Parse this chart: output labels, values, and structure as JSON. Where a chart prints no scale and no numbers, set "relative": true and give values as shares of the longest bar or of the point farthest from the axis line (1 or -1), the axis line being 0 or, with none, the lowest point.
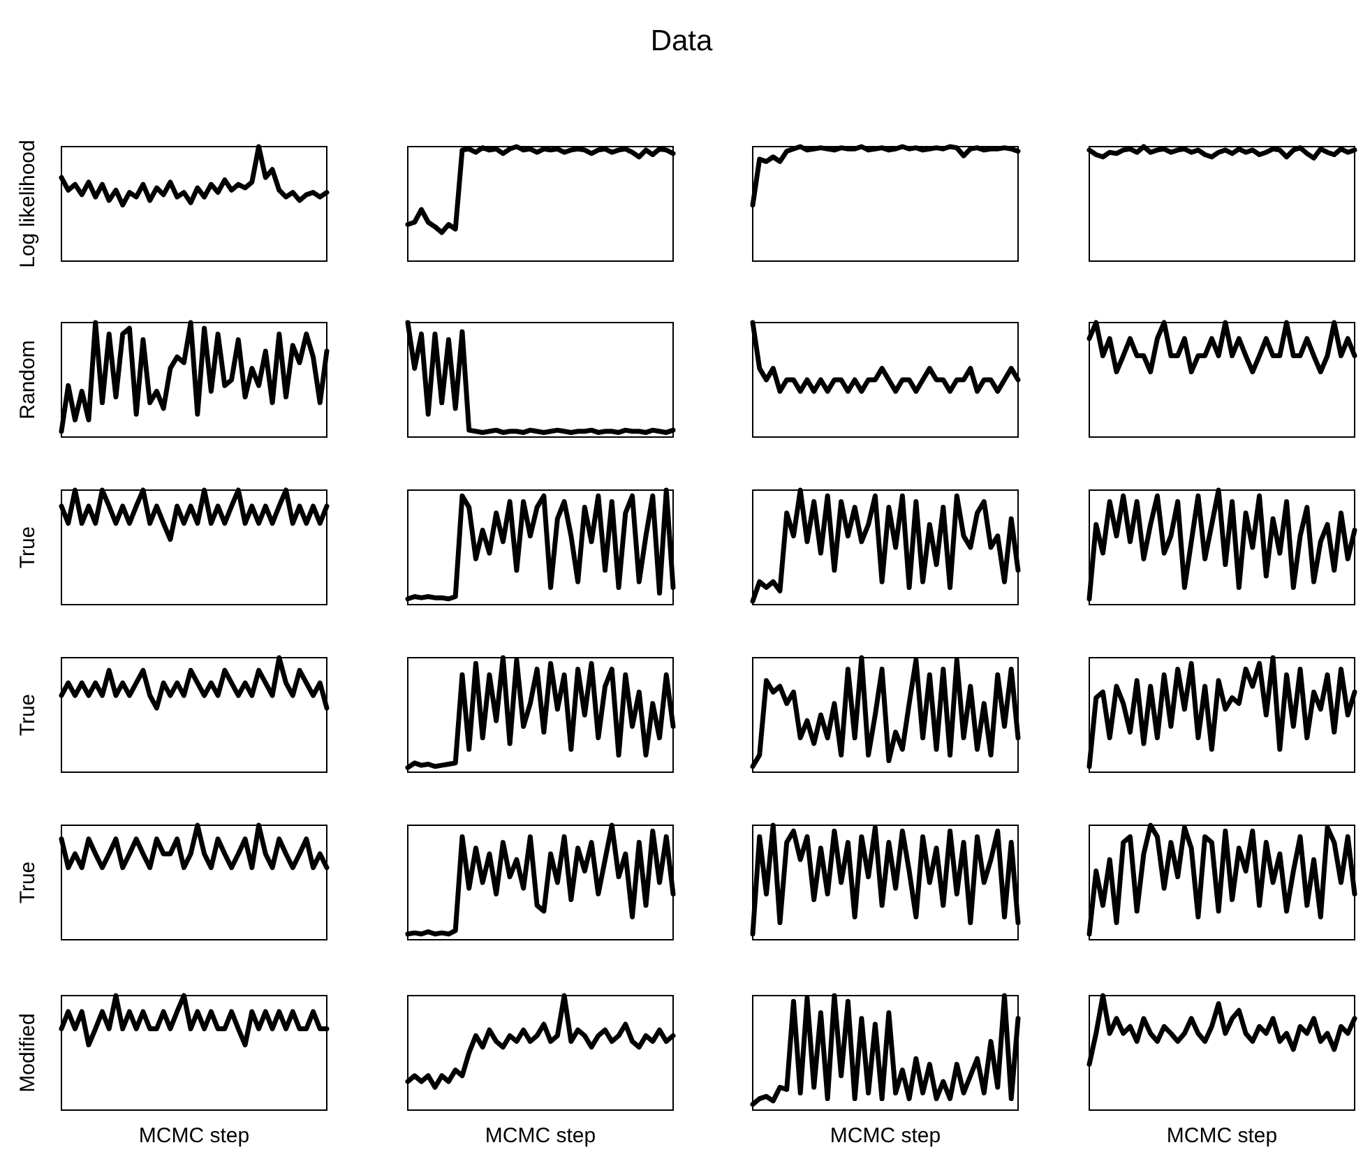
{
  "chart_data": [
    {
      "type": "line",
      "relative": true,
      "ylabel": "Log likelihood",
      "color": "#000000",
      "categories": [
        null,
        null,
        null,
        null,
        null,
        null,
        null,
        null,
        null,
        null,
        null,
        null,
        null,
        null,
        null,
        null,
        null,
        null,
        null,
        null,
        null,
        null,
        null,
        null,
        null,
        null,
        null,
        null,
        null,
        null,
        null,
        null,
        null,
        null,
        null,
        null,
        null,
        null,
        null,
        null
      ],
      "values": [
        0.73,
        0.62,
        0.67,
        0.58,
        0.69,
        0.56,
        0.67,
        0.53,
        0.62,
        0.49,
        0.6,
        0.56,
        0.67,
        0.53,
        0.64,
        0.58,
        0.69,
        0.56,
        0.6,
        0.51,
        0.64,
        0.56,
        0.67,
        0.6,
        0.71,
        0.62,
        0.67,
        0.64,
        0.69,
        1,
        0.73,
        0.8,
        0.62,
        0.56,
        0.6,
        0.53,
        0.58,
        0.6,
        0.56,
        0.6
      ]
    },
    {
      "type": "line",
      "relative": true,
      "title": "Data",
      "color": "#000000",
      "categories": [
        null,
        null,
        null,
        null,
        null,
        null,
        null,
        null,
        null,
        null,
        null,
        null,
        null,
        null,
        null,
        null,
        null,
        null,
        null,
        null,
        null,
        null,
        null,
        null,
        null,
        null,
        null,
        null,
        null,
        null,
        null,
        null,
        null,
        null,
        null,
        null,
        null,
        null,
        null,
        null
      ],
      "values": [
        0.32,
        0.34,
        0.45,
        0.34,
        0.3,
        0.25,
        0.32,
        0.28,
        0.97,
        0.98,
        0.95,
        0.99,
        0.97,
        0.98,
        0.94,
        0.98,
        1,
        0.97,
        0.98,
        0.95,
        0.98,
        0.97,
        0.98,
        0.95,
        0.97,
        0.98,
        0.97,
        0.94,
        0.97,
        0.98,
        0.95,
        0.97,
        0.98,
        0.95,
        0.91,
        0.97,
        0.93,
        0.98,
        0.97,
        0.94
      ]
    },
    {
      "type": "line",
      "relative": true,
      "color": "#000000",
      "categories": [
        null,
        null,
        null,
        null,
        null,
        null,
        null,
        null,
        null,
        null,
        null,
        null,
        null,
        null,
        null,
        null,
        null,
        null,
        null,
        null,
        null,
        null,
        null,
        null,
        null,
        null,
        null,
        null,
        null,
        null,
        null,
        null,
        null,
        null,
        null,
        null,
        null,
        null,
        null,
        null
      ],
      "values": [
        0.49,
        0.89,
        0.87,
        0.91,
        0.87,
        0.96,
        0.98,
        1,
        0.97,
        0.98,
        0.99,
        0.98,
        0.97,
        0.99,
        0.98,
        0.98,
        1,
        0.97,
        0.98,
        0.99,
        0.97,
        0.98,
        1,
        0.98,
        0.99,
        0.97,
        0.98,
        0.99,
        0.98,
        1,
        0.99,
        0.92,
        0.98,
        0.99,
        0.97,
        0.98,
        0.98,
        0.99,
        0.98,
        0.96
      ]
    },
    {
      "type": "line",
      "relative": true,
      "color": "#000000",
      "categories": [
        null,
        null,
        null,
        null,
        null,
        null,
        null,
        null,
        null,
        null,
        null,
        null,
        null,
        null,
        null,
        null,
        null,
        null,
        null,
        null,
        null,
        null,
        null,
        null,
        null,
        null,
        null,
        null,
        null,
        null,
        null,
        null,
        null,
        null,
        null,
        null,
        null,
        null,
        null,
        null
      ],
      "values": [
        0.97,
        0.93,
        0.91,
        0.95,
        0.94,
        0.97,
        0.98,
        0.95,
        1,
        0.95,
        0.97,
        0.98,
        0.95,
        0.97,
        0.98,
        0.95,
        0.97,
        0.93,
        0.91,
        0.95,
        0.97,
        0.94,
        0.98,
        0.95,
        0.97,
        0.93,
        0.95,
        0.98,
        0.97,
        0.91,
        0.97,
        0.99,
        0.94,
        0.9,
        0.98,
        0.95,
        0.93,
        0.98,
        0.95,
        0.97
      ]
    },
    {
      "type": "line",
      "relative": true,
      "ylabel": "Random",
      "color": "#000000",
      "categories": [
        null,
        null,
        null,
        null,
        null,
        null,
        null,
        null,
        null,
        null,
        null,
        null,
        null,
        null,
        null,
        null,
        null,
        null,
        null,
        null,
        null,
        null,
        null,
        null,
        null,
        null,
        null,
        null,
        null,
        null,
        null,
        null,
        null,
        null,
        null,
        null,
        null,
        null,
        null,
        null
      ],
      "values": [
        0.05,
        0.45,
        0.15,
        0.4,
        0.15,
        1,
        0.3,
        0.9,
        0.35,
        0.9,
        0.95,
        0.2,
        0.85,
        0.3,
        0.4,
        0.25,
        0.6,
        0.7,
        0.65,
        1,
        0.2,
        0.95,
        0.4,
        0.9,
        0.45,
        0.5,
        0.85,
        0.35,
        0.6,
        0.45,
        0.75,
        0.3,
        0.9,
        0.35,
        0.8,
        0.65,
        0.9,
        0.7,
        0.3,
        0.75
      ]
    },
    {
      "type": "line",
      "relative": true,
      "color": "#000000",
      "categories": [
        null,
        null,
        null,
        null,
        null,
        null,
        null,
        null,
        null,
        null,
        null,
        null,
        null,
        null,
        null,
        null,
        null,
        null,
        null,
        null,
        null,
        null,
        null,
        null,
        null,
        null,
        null,
        null,
        null,
        null,
        null,
        null,
        null,
        null,
        null,
        null,
        null,
        null,
        null,
        null
      ],
      "values": [
        1,
        0.6,
        0.9,
        0.2,
        0.9,
        0.3,
        0.85,
        0.25,
        0.92,
        0.06,
        0.05,
        0.04,
        0.05,
        0.06,
        0.04,
        0.05,
        0.05,
        0.04,
        0.06,
        0.05,
        0.04,
        0.05,
        0.06,
        0.05,
        0.04,
        0.05,
        0.05,
        0.06,
        0.04,
        0.05,
        0.05,
        0.04,
        0.06,
        0.05,
        0.05,
        0.04,
        0.06,
        0.05,
        0.04,
        0.06
      ]
    },
    {
      "type": "line",
      "relative": true,
      "color": "#000000",
      "categories": [
        null,
        null,
        null,
        null,
        null,
        null,
        null,
        null,
        null,
        null,
        null,
        null,
        null,
        null,
        null,
        null,
        null,
        null,
        null,
        null,
        null,
        null,
        null,
        null,
        null,
        null,
        null,
        null,
        null,
        null,
        null,
        null,
        null,
        null,
        null,
        null,
        null,
        null,
        null,
        null
      ],
      "values": [
        1,
        0.6,
        0.5,
        0.6,
        0.4,
        0.5,
        0.5,
        0.4,
        0.5,
        0.4,
        0.5,
        0.4,
        0.5,
        0.5,
        0.4,
        0.5,
        0.4,
        0.5,
        0.5,
        0.6,
        0.5,
        0.4,
        0.5,
        0.5,
        0.4,
        0.5,
        0.6,
        0.5,
        0.5,
        0.4,
        0.5,
        0.5,
        0.6,
        0.4,
        0.5,
        0.5,
        0.4,
        0.5,
        0.6,
        0.5
      ]
    },
    {
      "type": "line",
      "relative": true,
      "color": "#000000",
      "categories": [
        null,
        null,
        null,
        null,
        null,
        null,
        null,
        null,
        null,
        null,
        null,
        null,
        null,
        null,
        null,
        null,
        null,
        null,
        null,
        null,
        null,
        null,
        null,
        null,
        null,
        null,
        null,
        null,
        null,
        null,
        null,
        null,
        null,
        null,
        null,
        null,
        null,
        null,
        null,
        null
      ],
      "values": [
        0.86,
        1,
        0.71,
        0.86,
        0.57,
        0.71,
        0.86,
        0.71,
        0.71,
        0.57,
        0.86,
        1,
        0.71,
        0.71,
        0.86,
        0.57,
        0.71,
        0.71,
        0.86,
        0.71,
        1,
        0.71,
        0.86,
        0.71,
        0.57,
        0.71,
        0.86,
        0.71,
        0.71,
        1,
        0.71,
        0.71,
        0.86,
        0.71,
        0.57,
        0.71,
        1,
        0.71,
        0.86,
        0.71
      ]
    },
    {
      "type": "line",
      "relative": true,
      "ylabel": "True",
      "color": "#000000",
      "categories": [
        null,
        null,
        null,
        null,
        null,
        null,
        null,
        null,
        null,
        null,
        null,
        null,
        null,
        null,
        null,
        null,
        null,
        null,
        null,
        null,
        null,
        null,
        null,
        null,
        null,
        null,
        null,
        null,
        null,
        null,
        null,
        null,
        null,
        null,
        null,
        null,
        null,
        null,
        null,
        null
      ],
      "values": [
        0.86,
        0.71,
        1,
        0.71,
        0.86,
        0.71,
        1,
        0.86,
        0.71,
        0.86,
        0.71,
        0.86,
        1,
        0.71,
        0.86,
        0.71,
        0.57,
        0.86,
        0.71,
        0.86,
        0.71,
        1,
        0.71,
        0.86,
        0.71,
        0.86,
        1,
        0.71,
        0.86,
        0.71,
        0.86,
        0.71,
        0.86,
        1,
        0.71,
        0.86,
        0.71,
        0.86,
        0.71,
        0.86
      ]
    },
    {
      "type": "line",
      "relative": true,
      "color": "#000000",
      "categories": [
        null,
        null,
        null,
        null,
        null,
        null,
        null,
        null,
        null,
        null,
        null,
        null,
        null,
        null,
        null,
        null,
        null,
        null,
        null,
        null,
        null,
        null,
        null,
        null,
        null,
        null,
        null,
        null,
        null,
        null,
        null,
        null,
        null,
        null,
        null,
        null,
        null,
        null,
        null,
        null
      ],
      "values": [
        0.05,
        0.07,
        0.06,
        0.07,
        0.06,
        0.06,
        0.05,
        0.07,
        0.95,
        0.85,
        0.4,
        0.65,
        0.45,
        0.8,
        0.55,
        0.9,
        0.3,
        0.9,
        0.6,
        0.85,
        0.95,
        0.15,
        0.75,
        0.9,
        0.6,
        0.2,
        0.85,
        0.55,
        0.95,
        0.3,
        0.9,
        0.15,
        0.8,
        0.95,
        0.2,
        0.6,
        0.95,
        0.1,
        1.0,
        0.15
      ]
    },
    {
      "type": "line",
      "relative": true,
      "color": "#000000",
      "categories": [
        null,
        null,
        null,
        null,
        null,
        null,
        null,
        null,
        null,
        null,
        null,
        null,
        null,
        null,
        null,
        null,
        null,
        null,
        null,
        null,
        null,
        null,
        null,
        null,
        null,
        null,
        null,
        null,
        null,
        null,
        null,
        null,
        null,
        null,
        null,
        null,
        null,
        null,
        null,
        null
      ],
      "values": [
        0.03,
        0.2,
        0.15,
        0.2,
        0.12,
        0.8,
        0.6,
        1,
        0.55,
        0.9,
        0.45,
        0.95,
        0.3,
        0.9,
        0.6,
        0.85,
        0.55,
        0.7,
        0.95,
        0.2,
        0.85,
        0.5,
        0.95,
        0.15,
        0.9,
        0.2,
        0.7,
        0.35,
        0.85,
        0.15,
        0.95,
        0.6,
        0.5,
        0.8,
        0.9,
        0.5,
        0.6,
        0.2,
        0.75,
        0.3
      ]
    },
    {
      "type": "line",
      "relative": true,
      "color": "#000000",
      "categories": [
        null,
        null,
        null,
        null,
        null,
        null,
        null,
        null,
        null,
        null,
        null,
        null,
        null,
        null,
        null,
        null,
        null,
        null,
        null,
        null,
        null,
        null,
        null,
        null,
        null,
        null,
        null,
        null,
        null,
        null,
        null,
        null,
        null,
        null,
        null,
        null,
        null,
        null,
        null,
        null
      ],
      "values": [
        0.05,
        0.7,
        0.45,
        0.9,
        0.6,
        0.95,
        0.55,
        0.9,
        0.4,
        0.7,
        0.95,
        0.45,
        0.6,
        0.9,
        0.15,
        0.55,
        0.95,
        0.4,
        0.7,
        1,
        0.35,
        0.9,
        0.15,
        0.8,
        0.5,
        0.95,
        0.25,
        0.75,
        0.45,
        0.9,
        0.15,
        0.6,
        0.85,
        0.2,
        0.55,
        0.7,
        0.3,
        0.8,
        0.4,
        0.65
      ]
    },
    {
      "type": "line",
      "relative": true,
      "ylabel": "True",
      "color": "#000000",
      "categories": [
        null,
        null,
        null,
        null,
        null,
        null,
        null,
        null,
        null,
        null,
        null,
        null,
        null,
        null,
        null,
        null,
        null,
        null,
        null,
        null,
        null,
        null,
        null,
        null,
        null,
        null,
        null,
        null,
        null,
        null,
        null,
        null,
        null,
        null,
        null,
        null,
        null,
        null,
        null,
        null
      ],
      "values": [
        0.67,
        0.78,
        0.67,
        0.78,
        0.67,
        0.78,
        0.67,
        0.89,
        0.67,
        0.78,
        0.67,
        0.78,
        0.89,
        0.67,
        0.56,
        0.78,
        0.67,
        0.78,
        0.67,
        0.89,
        0.78,
        0.67,
        0.78,
        0.67,
        0.89,
        0.78,
        0.67,
        0.78,
        0.67,
        0.89,
        0.78,
        0.67,
        1,
        0.78,
        0.67,
        0.89,
        0.78,
        0.67,
        0.78,
        0.56
      ]
    },
    {
      "type": "line",
      "relative": true,
      "color": "#000000",
      "categories": [
        null,
        null,
        null,
        null,
        null,
        null,
        null,
        null,
        null,
        null,
        null,
        null,
        null,
        null,
        null,
        null,
        null,
        null,
        null,
        null,
        null,
        null,
        null,
        null,
        null,
        null,
        null,
        null,
        null,
        null,
        null,
        null,
        null,
        null,
        null,
        null,
        null,
        null,
        null,
        null
      ],
      "values": [
        0.04,
        0.08,
        0.06,
        0.07,
        0.05,
        0.06,
        0.07,
        0.08,
        0.85,
        0.2,
        0.95,
        0.3,
        0.85,
        0.45,
        1.0,
        0.25,
        0.98,
        0.4,
        0.6,
        0.9,
        0.35,
        0.95,
        0.55,
        0.85,
        0.2,
        0.9,
        0.5,
        0.95,
        0.3,
        0.75,
        0.9,
        0.15,
        0.85,
        0.4,
        0.7,
        0.15,
        0.6,
        0.3,
        0.85,
        0.4
      ]
    },
    {
      "type": "line",
      "relative": true,
      "color": "#000000",
      "categories": [
        null,
        null,
        null,
        null,
        null,
        null,
        null,
        null,
        null,
        null,
        null,
        null,
        null,
        null,
        null,
        null,
        null,
        null,
        null,
        null,
        null,
        null,
        null,
        null,
        null,
        null,
        null,
        null,
        null,
        null,
        null,
        null,
        null,
        null,
        null,
        null,
        null,
        null,
        null,
        null
      ],
      "values": [
        0.05,
        0.15,
        0.8,
        0.7,
        0.75,
        0.6,
        0.7,
        0.3,
        0.45,
        0.25,
        0.5,
        0.3,
        0.6,
        0.15,
        0.9,
        0.3,
        1.0,
        0.15,
        0.5,
        0.9,
        0.1,
        0.35,
        0.2,
        0.6,
        0.98,
        0.3,
        0.85,
        0.2,
        0.9,
        0.15,
        0.98,
        0.3,
        0.75,
        0.2,
        0.6,
        0.15,
        0.85,
        0.4,
        0.9,
        0.3
      ]
    },
    {
      "type": "line",
      "relative": true,
      "color": "#000000",
      "categories": [
        null,
        null,
        null,
        null,
        null,
        null,
        null,
        null,
        null,
        null,
        null,
        null,
        null,
        null,
        null,
        null,
        null,
        null,
        null,
        null,
        null,
        null,
        null,
        null,
        null,
        null,
        null,
        null,
        null,
        null,
        null,
        null,
        null,
        null,
        null,
        null,
        null,
        null,
        null,
        null
      ],
      "values": [
        0.05,
        0.65,
        0.7,
        0.3,
        0.75,
        0.6,
        0.35,
        0.8,
        0.25,
        0.75,
        0.3,
        0.85,
        0.4,
        0.9,
        0.55,
        0.95,
        0.3,
        0.75,
        0.2,
        0.8,
        0.55,
        0.65,
        0.6,
        0.9,
        0.75,
        0.95,
        0.5,
        1,
        0.2,
        0.85,
        0.4,
        0.9,
        0.3,
        0.7,
        0.55,
        0.85,
        0.35,
        0.9,
        0.5,
        0.7
      ]
    },
    {
      "type": "line",
      "relative": true,
      "ylabel": "True",
      "color": "#000000",
      "categories": [
        null,
        null,
        null,
        null,
        null,
        null,
        null,
        null,
        null,
        null,
        null,
        null,
        null,
        null,
        null,
        null,
        null,
        null,
        null,
        null,
        null,
        null,
        null,
        null,
        null,
        null,
        null,
        null,
        null,
        null,
        null,
        null,
        null,
        null,
        null,
        null,
        null,
        null,
        null,
        null
      ],
      "values": [
        0.88,
        0.63,
        0.75,
        0.63,
        0.88,
        0.75,
        0.63,
        0.75,
        0.88,
        0.63,
        0.75,
        0.88,
        0.75,
        0.63,
        0.88,
        0.75,
        0.75,
        0.88,
        0.63,
        0.75,
        1,
        0.75,
        0.63,
        0.88,
        0.75,
        0.63,
        0.75,
        0.88,
        0.63,
        1,
        0.75,
        0.63,
        0.88,
        0.75,
        0.63,
        0.75,
        0.88,
        0.63,
        0.75,
        0.63
      ]
    },
    {
      "type": "line",
      "relative": true,
      "color": "#000000",
      "categories": [
        null,
        null,
        null,
        null,
        null,
        null,
        null,
        null,
        null,
        null,
        null,
        null,
        null,
        null,
        null,
        null,
        null,
        null,
        null,
        null,
        null,
        null,
        null,
        null,
        null,
        null,
        null,
        null,
        null,
        null,
        null,
        null,
        null,
        null,
        null,
        null,
        null,
        null,
        null,
        null
      ],
      "values": [
        0.05,
        0.06,
        0.05,
        0.07,
        0.05,
        0.06,
        0.05,
        0.08,
        0.9,
        0.45,
        0.8,
        0.5,
        0.75,
        0.4,
        0.85,
        0.55,
        0.7,
        0.45,
        0.9,
        0.3,
        0.25,
        0.75,
        0.5,
        0.9,
        0.35,
        0.8,
        0.6,
        0.85,
        0.4,
        0.7,
        1,
        0.55,
        0.75,
        0.2,
        0.85,
        0.3,
        0.95,
        0.5,
        0.9,
        0.4
      ]
    },
    {
      "type": "line",
      "relative": true,
      "color": "#000000",
      "categories": [
        null,
        null,
        null,
        null,
        null,
        null,
        null,
        null,
        null,
        null,
        null,
        null,
        null,
        null,
        null,
        null,
        null,
        null,
        null,
        null,
        null,
        null,
        null,
        null,
        null,
        null,
        null,
        null,
        null,
        null,
        null,
        null,
        null,
        null,
        null,
        null,
        null,
        null,
        null,
        null
      ],
      "values": [
        0.05,
        0.9,
        0.4,
        1,
        0.15,
        0.85,
        0.95,
        0.7,
        0.9,
        0.35,
        0.8,
        0.4,
        0.95,
        0.5,
        0.85,
        0.2,
        0.9,
        0.55,
        0.98,
        0.3,
        0.85,
        0.45,
        0.95,
        0.6,
        0.2,
        0.9,
        0.5,
        0.8,
        0.3,
        0.95,
        0.4,
        0.85,
        0.15,
        0.9,
        0.5,
        0.7,
        0.95,
        0.2,
        0.85,
        0.15
      ]
    },
    {
      "type": "line",
      "relative": true,
      "color": "#000000",
      "categories": [
        null,
        null,
        null,
        null,
        null,
        null,
        null,
        null,
        null,
        null,
        null,
        null,
        null,
        null,
        null,
        null,
        null,
        null,
        null,
        null,
        null,
        null,
        null,
        null,
        null,
        null,
        null,
        null,
        null,
        null,
        null,
        null,
        null,
        null,
        null,
        null,
        null,
        null,
        null,
        null
      ],
      "values": [
        0.05,
        0.6,
        0.3,
        0.7,
        0.15,
        0.85,
        0.9,
        0.25,
        0.75,
        1,
        0.9,
        0.45,
        0.85,
        0.55,
        0.98,
        0.8,
        0.2,
        0.9,
        0.85,
        0.25,
        0.95,
        0.35,
        0.8,
        0.6,
        0.95,
        0.3,
        0.85,
        0.5,
        0.75,
        0.25,
        0.6,
        0.9,
        0.3,
        0.7,
        0.2,
        0.98,
        0.85,
        0.5,
        0.9,
        0.4
      ]
    },
    {
      "type": "line",
      "relative": true,
      "ylabel": "Modified",
      "xlabel": "MCMC step",
      "color": "#000000",
      "categories": [
        null,
        null,
        null,
        null,
        null,
        null,
        null,
        null,
        null,
        null,
        null,
        null,
        null,
        null,
        null,
        null,
        null,
        null,
        null,
        null,
        null,
        null,
        null,
        null,
        null,
        null,
        null,
        null,
        null,
        null,
        null,
        null,
        null,
        null,
        null,
        null,
        null,
        null,
        null,
        null
      ],
      "values": [
        0.71,
        0.86,
        0.71,
        0.86,
        0.57,
        0.71,
        0.86,
        0.71,
        1,
        0.71,
        0.86,
        0.71,
        0.86,
        0.71,
        0.71,
        0.86,
        0.71,
        0.86,
        1,
        0.71,
        0.86,
        0.71,
        0.86,
        0.71,
        0.71,
        0.86,
        0.71,
        0.57,
        0.86,
        0.71,
        0.86,
        0.71,
        0.86,
        0.71,
        0.86,
        0.71,
        0.71,
        0.86,
        0.71,
        0.71
      ]
    },
    {
      "type": "line",
      "relative": true,
      "xlabel": "MCMC step",
      "color": "#000000",
      "categories": [
        null,
        null,
        null,
        null,
        null,
        null,
        null,
        null,
        null,
        null,
        null,
        null,
        null,
        null,
        null,
        null,
        null,
        null,
        null,
        null,
        null,
        null,
        null,
        null,
        null,
        null,
        null,
        null,
        null,
        null,
        null,
        null,
        null,
        null,
        null,
        null,
        null,
        null,
        null,
        null
      ],
      "values": [
        0.25,
        0.3,
        0.25,
        0.3,
        0.2,
        0.3,
        0.25,
        0.35,
        0.3,
        0.5,
        0.65,
        0.55,
        0.7,
        0.6,
        0.55,
        0.65,
        0.6,
        0.7,
        0.6,
        0.65,
        0.75,
        0.6,
        0.65,
        1,
        0.6,
        0.7,
        0.65,
        0.55,
        0.65,
        0.7,
        0.6,
        0.65,
        0.75,
        0.6,
        0.55,
        0.65,
        0.6,
        0.7,
        0.6,
        0.65
      ]
    },
    {
      "type": "line",
      "relative": true,
      "xlabel": "MCMC step",
      "color": "#000000",
      "categories": [
        null,
        null,
        null,
        null,
        null,
        null,
        null,
        null,
        null,
        null,
        null,
        null,
        null,
        null,
        null,
        null,
        null,
        null,
        null,
        null,
        null,
        null,
        null,
        null,
        null,
        null,
        null,
        null,
        null,
        null,
        null,
        null,
        null,
        null,
        null,
        null,
        null,
        null,
        null,
        null
      ],
      "values": [
        0.05,
        0.1,
        0.12,
        0.08,
        0.2,
        0.18,
        0.95,
        0.15,
        0.98,
        0.2,
        0.85,
        0.1,
        1.0,
        0.3,
        0.95,
        0.1,
        0.8,
        0.15,
        0.75,
        0.1,
        0.85,
        0.15,
        0.35,
        0.1,
        0.45,
        0.15,
        0.4,
        0.1,
        0.25,
        0.1,
        0.4,
        0.15,
        0.3,
        0.45,
        0.15,
        0.6,
        0.2,
        1.0,
        0.1,
        0.8
      ]
    },
    {
      "type": "line",
      "relative": true,
      "xlabel": "MCMC step",
      "color": "#000000",
      "categories": [
        null,
        null,
        null,
        null,
        null,
        null,
        null,
        null,
        null,
        null,
        null,
        null,
        null,
        null,
        null,
        null,
        null,
        null,
        null,
        null,
        null,
        null,
        null,
        null,
        null,
        null,
        null,
        null,
        null,
        null,
        null,
        null,
        null,
        null,
        null,
        null,
        null,
        null,
        null,
        null
      ],
      "values": [
        0.4,
        0.67,
        1,
        0.67,
        0.8,
        0.67,
        0.73,
        0.6,
        0.8,
        0.67,
        0.6,
        0.73,
        0.67,
        0.6,
        0.67,
        0.8,
        0.67,
        0.6,
        0.73,
        0.93,
        0.67,
        0.8,
        0.87,
        0.67,
        0.6,
        0.73,
        0.67,
        0.8,
        0.6,
        0.67,
        0.53,
        0.73,
        0.67,
        0.8,
        0.6,
        0.67,
        0.53,
        0.73,
        0.67,
        0.8
      ]
    }
  ]
}
